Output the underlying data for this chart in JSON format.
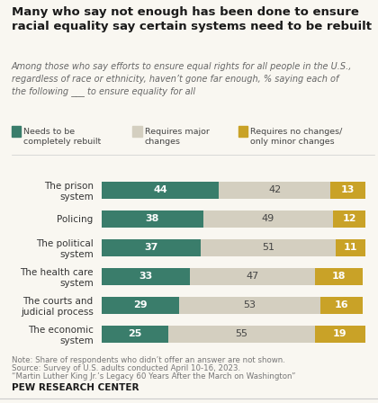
{
  "title": "Many who say not enough has been done to ensure\nracial equality say certain systems need to be rebuilt",
  "subtitle_plain": "Among those who say efforts to ensure equal rights for all people in the U.S.,\nregardless of race or ethnicity, ",
  "subtitle_bold": "haven’t gone far enough",
  "subtitle_end": ", % saying each of\nthe following ___ to ensure equality for all",
  "categories": [
    "The prison\nsystem",
    "Policing",
    "The political\nsystem",
    "The health care\nsystem",
    "The courts and\njudicial process",
    "The economic\nsystem"
  ],
  "rebuilt": [
    44,
    38,
    37,
    33,
    29,
    25
  ],
  "major": [
    42,
    49,
    51,
    47,
    53,
    55
  ],
  "minor": [
    13,
    12,
    11,
    18,
    16,
    19
  ],
  "color_rebuilt": "#3a7d6b",
  "color_major": "#d4cfc0",
  "color_minor": "#c9a227",
  "legend_labels": [
    "Needs to be\ncompletely rebuilt",
    "Requires major\nchanges",
    "Requires no changes/\nonly minor changes"
  ],
  "note": "Note: Share of respondents who didn’t offer an answer are not shown.",
  "source": "Source: Survey of U.S. adults conducted April 10-16, 2023.",
  "source2": "“Martin Luther King Jr.’s Legacy 60 Years After the March on Washington”",
  "footer": "PEW RESEARCH CENTER",
  "background_color": "#f9f7f1",
  "title_color": "#1a1a1a",
  "subtitle_color": "#666666",
  "note_color": "#777777",
  "bar_label_dark": "#444444",
  "bar_label_white": "#ffffff"
}
